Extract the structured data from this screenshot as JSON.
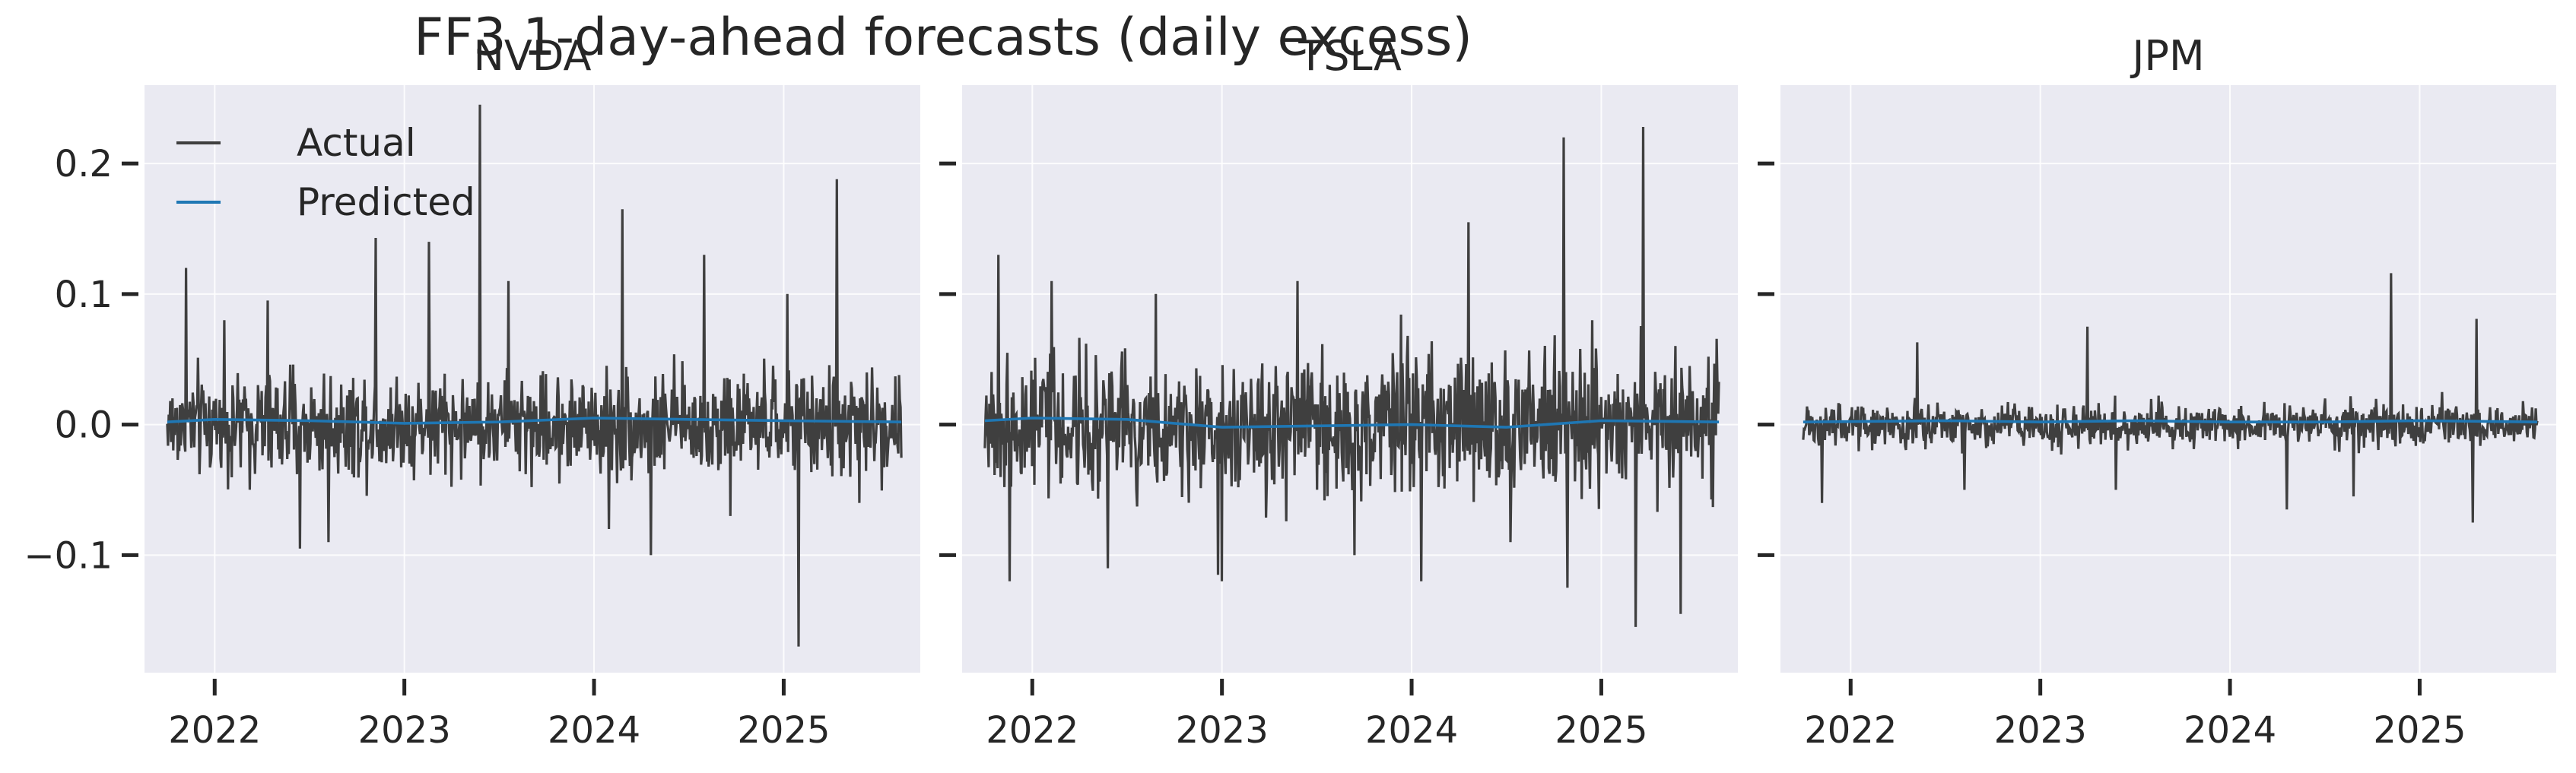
{
  "chart_data": {
    "type": "line",
    "title": "FF3 1-day-ahead forecasts (daily excess)",
    "sharey": true,
    "ylim": [
      -0.19,
      0.26
    ],
    "yticks": [
      -0.1,
      0.0,
      0.1,
      0.2
    ],
    "ytick_labels": [
      "−0.1",
      "0.0",
      "0.1",
      "0.2"
    ],
    "xlim": [
      2021.63,
      2025.72
    ],
    "xticks": [
      2022,
      2023,
      2024,
      2025
    ],
    "xtick_labels": [
      "2022",
      "2023",
      "2024",
      "2025"
    ],
    "x_start": 2021.75,
    "x_end": 2025.62,
    "legend": {
      "placement": "top-left",
      "entries": [
        {
          "label": "Actual",
          "color": "#3f3f3f"
        },
        {
          "label": "Predicted",
          "color": "#1f77b4"
        }
      ]
    },
    "panels": [
      {
        "ticker": "NVDA",
        "actual_noise_scale": 0.028,
        "spikes": [
          {
            "x": 2021.85,
            "y": 0.12
          },
          {
            "x": 2022.05,
            "y": 0.08
          },
          {
            "x": 2022.28,
            "y": 0.095
          },
          {
            "x": 2022.45,
            "y": -0.095
          },
          {
            "x": 2022.6,
            "y": -0.09
          },
          {
            "x": 2022.85,
            "y": 0.143
          },
          {
            "x": 2023.13,
            "y": 0.14
          },
          {
            "x": 2023.4,
            "y": 0.245
          },
          {
            "x": 2023.55,
            "y": 0.11
          },
          {
            "x": 2024.08,
            "y": -0.08
          },
          {
            "x": 2024.15,
            "y": 0.165
          },
          {
            "x": 2024.3,
            "y": -0.1
          },
          {
            "x": 2024.58,
            "y": 0.13
          },
          {
            "x": 2024.72,
            "y": -0.07
          },
          {
            "x": 2025.02,
            "y": 0.1
          },
          {
            "x": 2025.08,
            "y": -0.17
          },
          {
            "x": 2025.28,
            "y": 0.188
          },
          {
            "x": 2025.4,
            "y": -0.06
          }
        ],
        "predicted": [
          [
            2021.75,
            0.002
          ],
          [
            2022.0,
            0.004
          ],
          [
            2022.5,
            0.003
          ],
          [
            2023.0,
            0.001
          ],
          [
            2023.5,
            0.002
          ],
          [
            2024.0,
            0.005
          ],
          [
            2024.5,
            0.004
          ],
          [
            2025.0,
            0.003
          ],
          [
            2025.62,
            0.002
          ]
        ]
      },
      {
        "ticker": "TSLA",
        "actual_noise_scale": 0.038,
        "spikes": [
          {
            "x": 2021.82,
            "y": 0.13
          },
          {
            "x": 2021.88,
            "y": -0.12
          },
          {
            "x": 2022.1,
            "y": 0.11
          },
          {
            "x": 2022.4,
            "y": -0.11
          },
          {
            "x": 2022.65,
            "y": 0.1
          },
          {
            "x": 2022.98,
            "y": -0.115
          },
          {
            "x": 2023.0,
            "y": -0.12
          },
          {
            "x": 2023.4,
            "y": 0.11
          },
          {
            "x": 2023.7,
            "y": -0.1
          },
          {
            "x": 2024.05,
            "y": -0.12
          },
          {
            "x": 2024.3,
            "y": 0.155
          },
          {
            "x": 2024.52,
            "y": -0.09
          },
          {
            "x": 2024.8,
            "y": 0.22
          },
          {
            "x": 2024.82,
            "y": -0.125
          },
          {
            "x": 2024.95,
            "y": 0.08
          },
          {
            "x": 2025.18,
            "y": -0.155
          },
          {
            "x": 2025.22,
            "y": 0.228
          },
          {
            "x": 2025.42,
            "y": -0.145
          }
        ],
        "predicted": [
          [
            2021.75,
            0.003
          ],
          [
            2022.0,
            0.005
          ],
          [
            2022.5,
            0.004
          ],
          [
            2023.0,
            -0.002
          ],
          [
            2023.5,
            -0.001
          ],
          [
            2024.0,
            0.0
          ],
          [
            2024.5,
            -0.002
          ],
          [
            2025.0,
            0.003
          ],
          [
            2025.62,
            0.002
          ]
        ]
      },
      {
        "ticker": "JPM",
        "actual_noise_scale": 0.012,
        "spikes": [
          {
            "x": 2021.85,
            "y": -0.06
          },
          {
            "x": 2022.35,
            "y": 0.063
          },
          {
            "x": 2022.6,
            "y": -0.05
          },
          {
            "x": 2023.25,
            "y": 0.075
          },
          {
            "x": 2023.4,
            "y": -0.05
          },
          {
            "x": 2024.3,
            "y": -0.065
          },
          {
            "x": 2024.65,
            "y": -0.055
          },
          {
            "x": 2024.85,
            "y": 0.116
          },
          {
            "x": 2025.3,
            "y": 0.081
          },
          {
            "x": 2025.28,
            "y": -0.075
          }
        ],
        "predicted": [
          [
            2021.75,
            0.002
          ],
          [
            2022.5,
            0.003
          ],
          [
            2023.0,
            0.002
          ],
          [
            2023.5,
            0.003
          ],
          [
            2024.0,
            0.002
          ],
          [
            2024.5,
            0.002
          ],
          [
            2025.0,
            0.003
          ],
          [
            2025.62,
            0.002
          ]
        ]
      }
    ]
  }
}
